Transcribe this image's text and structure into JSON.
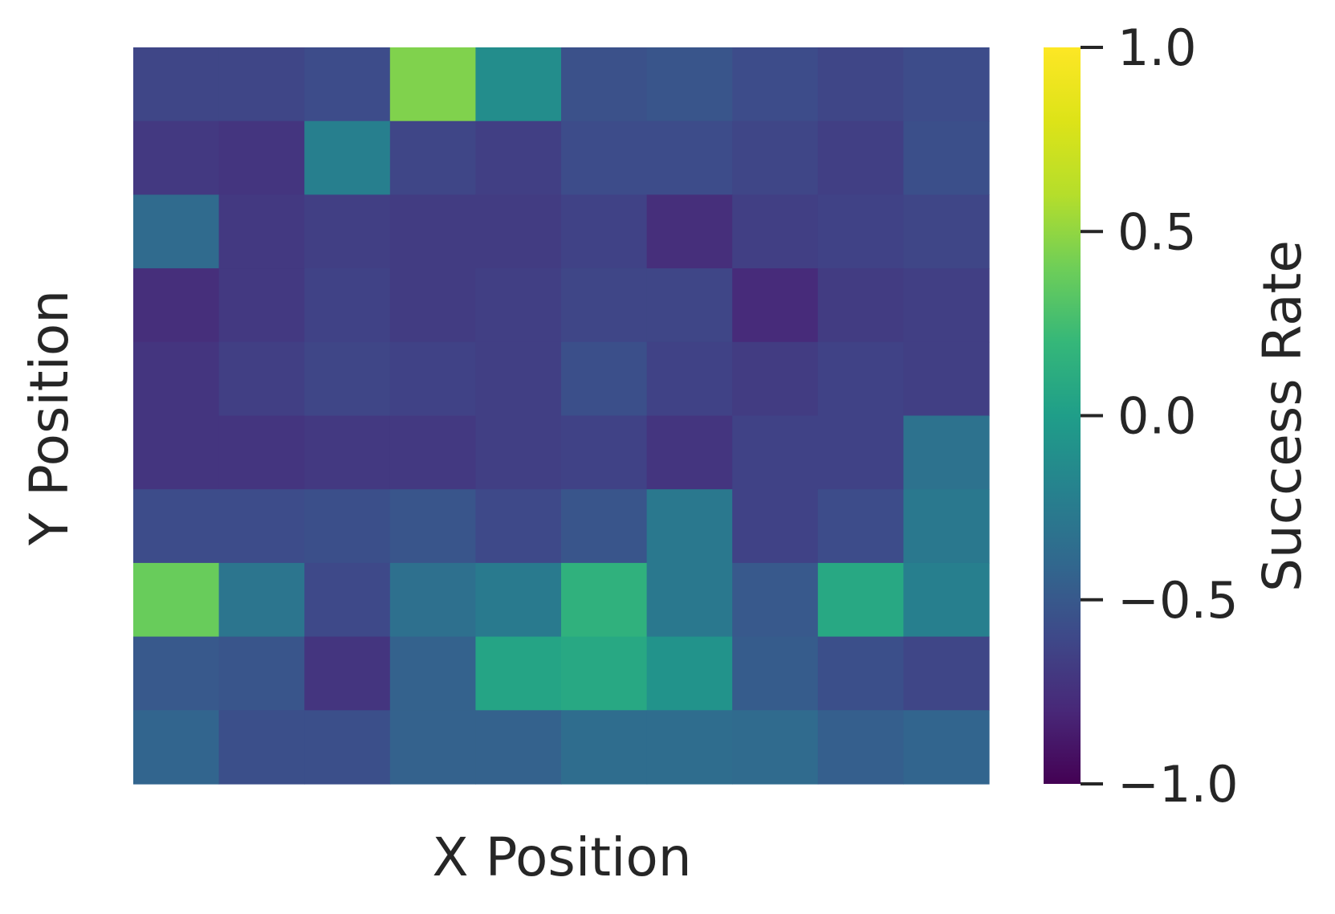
{
  "chart_data": {
    "type": "heatmap",
    "xlabel": "X Position",
    "ylabel": "Y Position",
    "colorbar": {
      "label": "Success Rate",
      "colormap": "viridis",
      "vmin": -1.0,
      "vmax": 1.0,
      "ticks": [
        -1.0,
        -0.5,
        0.0,
        0.5,
        1.0
      ],
      "tick_labels": [
        "−1.0",
        "−0.5",
        "0.0",
        "0.5",
        "1.0"
      ]
    },
    "rows": 10,
    "cols": 10,
    "values": [
      [
        -0.62,
        -0.62,
        -0.58,
        0.45,
        -0.12,
        -0.55,
        -0.52,
        -0.58,
        -0.62,
        -0.58
      ],
      [
        -0.7,
        -0.72,
        -0.22,
        -0.62,
        -0.66,
        -0.58,
        -0.58,
        -0.62,
        -0.66,
        -0.56
      ],
      [
        -0.38,
        -0.7,
        -0.66,
        -0.68,
        -0.68,
        -0.64,
        -0.76,
        -0.66,
        -0.64,
        -0.62
      ],
      [
        -0.76,
        -0.7,
        -0.64,
        -0.68,
        -0.66,
        -0.62,
        -0.62,
        -0.78,
        -0.68,
        -0.66
      ],
      [
        -0.72,
        -0.66,
        -0.62,
        -0.64,
        -0.66,
        -0.56,
        -0.64,
        -0.68,
        -0.64,
        -0.66
      ],
      [
        -0.72,
        -0.72,
        -0.7,
        -0.7,
        -0.66,
        -0.64,
        -0.72,
        -0.64,
        -0.64,
        -0.32
      ],
      [
        -0.58,
        -0.58,
        -0.56,
        -0.52,
        -0.6,
        -0.52,
        -0.28,
        -0.64,
        -0.58,
        -0.28
      ],
      [
        0.38,
        -0.3,
        -0.6,
        -0.34,
        -0.26,
        0.15,
        -0.28,
        -0.5,
        0.08,
        -0.22
      ],
      [
        -0.5,
        -0.52,
        -0.72,
        -0.44,
        0.05,
        0.08,
        -0.08,
        -0.48,
        -0.56,
        -0.62
      ],
      [
        -0.42,
        -0.56,
        -0.56,
        -0.44,
        -0.44,
        -0.36,
        -0.36,
        -0.38,
        -0.46,
        -0.42
      ]
    ]
  }
}
